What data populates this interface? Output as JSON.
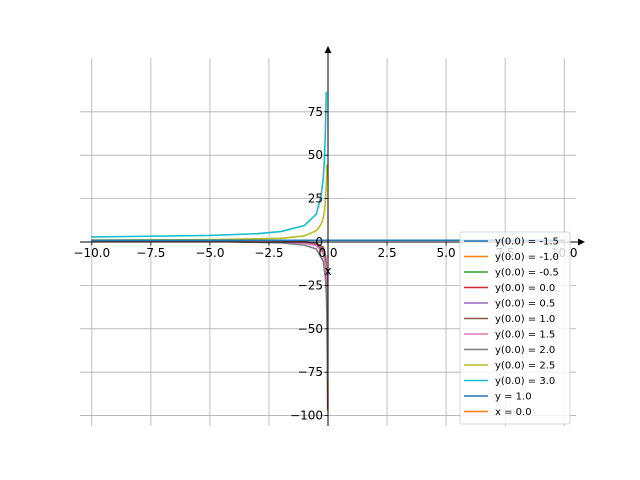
{
  "chart_data": {
    "type": "line",
    "xlabel": "x",
    "ylabel": "",
    "xlim": [
      -10.5,
      10.5
    ],
    "ylim": [
      -106,
      106
    ],
    "grid": true,
    "legend_position": "lower-right",
    "x_ticks": [
      -10.0,
      -7.5,
      -5.0,
      -2.5,
      0.0,
      2.5,
      5.0,
      7.5,
      10.0
    ],
    "x_tick_labels": [
      "−10.0",
      "−7.5",
      "−5.0",
      "−2.5",
      "0.0",
      "2.5",
      "5.0",
      "7.5",
      "10.0"
    ],
    "y_ticks": [
      -100,
      -75,
      -50,
      -25,
      0,
      25,
      50,
      75
    ],
    "y_tick_labels": [
      "−100",
      "−75",
      "−50",
      "−25",
      "0",
      "25",
      "50",
      "75"
    ],
    "series": [
      {
        "name": "y(0.0) = -1.5",
        "color": "#1f77b4",
        "values": [
          [
            -10.0,
            0.91
          ],
          [
            -5.0,
            0.83
          ],
          [
            -2.0,
            0.6
          ],
          [
            -1.0,
            0.2
          ],
          [
            -0.5,
            -0.43
          ],
          [
            -0.2,
            -3.0
          ],
          [
            -0.1,
            -8.0
          ],
          [
            -0.05,
            -19.0
          ],
          [
            -0.025,
            -39.0
          ],
          [
            -0.0125,
            -79.0
          ],
          [
            -0.0105,
            -94.0
          ]
        ]
      },
      {
        "name": "y(0.0) = -1.0",
        "color": "#ff7f0e",
        "values": [
          [
            -10.0,
            0.9
          ],
          [
            -5.0,
            0.81
          ],
          [
            -2.0,
            0.56
          ],
          [
            -1.0,
            0.13
          ],
          [
            -0.5,
            -0.55
          ],
          [
            -0.2,
            -3.3
          ],
          [
            -0.1,
            -8.5
          ],
          [
            -0.05,
            -20.0
          ],
          [
            -0.025,
            -42.0
          ],
          [
            -0.0125,
            -86.0
          ],
          [
            -0.0108,
            -97.0
          ]
        ]
      },
      {
        "name": "y(0.0) = -0.5",
        "color": "#2ca02c",
        "values": [
          [
            -10.0,
            0.89
          ],
          [
            -5.0,
            0.79
          ],
          [
            -2.0,
            0.5
          ],
          [
            -1.0,
            0.04
          ],
          [
            -0.5,
            -0.7
          ],
          [
            -0.2,
            -3.6
          ],
          [
            -0.1,
            -9.0
          ],
          [
            -0.05,
            -21.0
          ],
          [
            -0.025,
            -44.0
          ],
          [
            -0.015,
            -73.0
          ],
          [
            -0.0124,
            -86.0
          ]
        ]
      },
      {
        "name": "y(0.0) = 0.0",
        "color": "#d62728",
        "values": [
          [
            -10.0,
            0.88
          ],
          [
            -5.0,
            0.76
          ],
          [
            -2.0,
            0.44
          ],
          [
            -1.0,
            -0.06
          ],
          [
            -0.5,
            -0.85
          ],
          [
            -0.2,
            -4.0
          ],
          [
            -0.1,
            -9.5
          ],
          [
            -0.05,
            -22.0
          ],
          [
            -0.025,
            -47.0
          ],
          [
            -0.015,
            -78.0
          ],
          [
            -0.0127,
            -96.0
          ]
        ]
      },
      {
        "name": "y(0.0) = 0.5",
        "color": "#9467bd",
        "values": [
          [
            -10.0,
            0.86
          ],
          [
            -5.0,
            0.72
          ],
          [
            -2.0,
            0.35
          ],
          [
            -1.0,
            -0.2
          ],
          [
            -0.5,
            -1.05
          ],
          [
            -0.2,
            -4.5
          ],
          [
            -0.1,
            -10.5
          ],
          [
            -0.05,
            -24.0
          ],
          [
            -0.03,
            -42.0
          ],
          [
            -0.02,
            -64.0
          ],
          [
            -0.0159,
            -80.0
          ]
        ]
      },
      {
        "name": "y(0.0) = 1.0",
        "color": "#8c564b",
        "values": [
          [
            -10.0,
            0.84
          ],
          [
            -5.0,
            0.67
          ],
          [
            -2.0,
            0.22
          ],
          [
            -1.0,
            -0.4
          ],
          [
            -0.5,
            -1.35
          ],
          [
            -0.2,
            -5.2
          ],
          [
            -0.1,
            -12.0
          ],
          [
            -0.05,
            -26.0
          ],
          [
            -0.03,
            -46.0
          ],
          [
            -0.02,
            -68.0
          ],
          [
            -0.0177,
            -80.0
          ]
        ]
      },
      {
        "name": "y(0.0) = 1.5",
        "color": "#e377c2",
        "values": [
          [
            -10.0,
            0.8
          ],
          [
            -5.0,
            0.58
          ],
          [
            -2.0,
            0.0
          ],
          [
            -1.0,
            -0.8
          ],
          [
            -0.5,
            -2.0
          ],
          [
            -0.2,
            -6.5
          ],
          [
            -0.1,
            -14.0
          ],
          [
            -0.07,
            -20.0
          ],
          [
            -0.05,
            -28.0
          ],
          [
            -0.042,
            -34.0
          ],
          [
            -0.0385,
            -40.0
          ]
        ]
      },
      {
        "name": "y(0.0) = 2.0",
        "color": "#7f7f7f",
        "values": [
          [
            -10.0,
            0.7
          ],
          [
            -5.0,
            0.4
          ],
          [
            -2.0,
            -0.5
          ],
          [
            -1.0,
            -1.8
          ],
          [
            -0.5,
            -4.0
          ],
          [
            -0.2,
            -11.0
          ],
          [
            -0.1,
            -22.0
          ],
          [
            -0.07,
            -30.0
          ],
          [
            -0.05,
            -42.0
          ],
          [
            -0.03,
            -68.0
          ],
          [
            -0.025,
            -80.0
          ]
        ]
      },
      {
        "name": "y(0.0) = 2.5",
        "color": "#bcbd22",
        "values": [
          [
            -10.0,
            1.15
          ],
          [
            -5.0,
            1.35
          ],
          [
            -2.0,
            2.1
          ],
          [
            -1.0,
            3.5
          ],
          [
            -0.5,
            6.5
          ],
          [
            -0.3,
            10.0
          ],
          [
            -0.2,
            14.0
          ],
          [
            -0.15,
            18.0
          ],
          [
            -0.12,
            22.0
          ],
          [
            -0.08,
            31.0
          ],
          [
            -0.06,
            38.0
          ],
          [
            -0.045,
            44.0
          ]
        ]
      },
      {
        "name": "y(0.0) = 3.0",
        "color": "#17becf",
        "values": [
          [
            -10.0,
            2.9
          ],
          [
            -5.0,
            3.8
          ],
          [
            -3.0,
            4.8
          ],
          [
            -2.0,
            6.0
          ],
          [
            -1.0,
            9.5
          ],
          [
            -0.5,
            16.0
          ],
          [
            -0.3,
            26.0
          ],
          [
            -0.2,
            37.0
          ],
          [
            -0.15,
            48.0
          ],
          [
            -0.12,
            60.0
          ],
          [
            -0.1,
            70.0
          ],
          [
            -0.075,
            86.0
          ]
        ]
      },
      {
        "name": "y = 1.0",
        "color": "#1f77b4",
        "values": [
          [
            -10.0,
            1.0
          ],
          [
            10.0,
            1.0
          ]
        ]
      },
      {
        "name": "x = 0.0",
        "color": "#ff7f0e",
        "values": []
      }
    ]
  }
}
